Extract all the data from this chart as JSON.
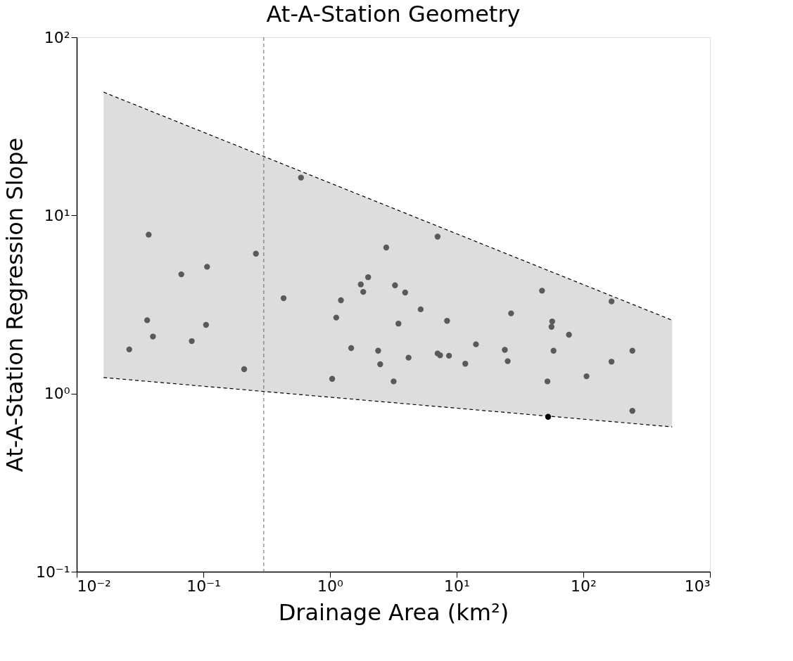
{
  "chart_data": {
    "type": "scatter",
    "title": "At-A-Station Geometry",
    "xlabel": "Drainage Area (km²)",
    "ylabel": "At-A-Station Regression Slope",
    "log": "xy",
    "grid": false,
    "marker": "circle",
    "xlim": [
      0.01,
      1000
    ],
    "ylim": [
      0.1,
      100
    ],
    "xticks": [
      {
        "value": 0.01,
        "label": "10⁻²"
      },
      {
        "value": 0.1,
        "label": "10⁻¹"
      },
      {
        "value": 1,
        "label": "10⁰"
      },
      {
        "value": 10,
        "label": "10¹"
      },
      {
        "value": 100,
        "label": "10²"
      },
      {
        "value": 1000,
        "label": "10³"
      }
    ],
    "yticks": [
      {
        "value": 0.1,
        "label": "10⁻¹"
      },
      {
        "value": 1,
        "label": "10⁰"
      },
      {
        "value": 10,
        "label": "10¹"
      },
      {
        "value": 100,
        "label": "10²"
      }
    ],
    "ref_lines": [
      {
        "axis": "x",
        "value": 0.3,
        "color": "#666666",
        "line_style": "dashed"
      }
    ],
    "series": [
      {
        "type": "line",
        "color": "#000000",
        "marker": "none",
        "line_style": "dashed",
        "x": [
          0.0163,
          503
        ],
        "values": [
          49.2,
          2.58
        ],
        "lower": [
          1.23,
          0.65
        ],
        "upper": [
          49.2,
          2.58
        ]
      },
      {
        "type": "line",
        "color": "#000000",
        "marker": "none",
        "line_style": "dashed",
        "x": [
          0.0163,
          503
        ],
        "values": [
          1.23,
          0.65
        ]
      },
      {
        "color": "#5a5a5a",
        "x": [
          0.026,
          0.037,
          0.036,
          0.04,
          0.067,
          0.081,
          0.107,
          0.105,
          0.21,
          0.26,
          0.43,
          0.59,
          1.04,
          1.12,
          1.22,
          1.47,
          1.75,
          1.83,
          2.0,
          2.4,
          2.49,
          2.78,
          3.18,
          3.26,
          3.47,
          3.92,
          4.17,
          5.2,
          7.07,
          7.07,
          7.4,
          8.4,
          8.7,
          11.7,
          14.2,
          24.0,
          25.3,
          26.9,
          47.2,
          52.1,
          56.8,
          56.1,
          58.2,
          77,
          106,
          167,
          167,
          244,
          244
        ],
        "values": [
          1.77,
          7.8,
          2.58,
          2.09,
          4.67,
          1.97,
          5.15,
          2.43,
          1.37,
          6.1,
          3.43,
          16.3,
          1.21,
          2.67,
          3.34,
          1.8,
          4.1,
          3.72,
          4.5,
          1.74,
          1.46,
          6.6,
          1.17,
          4.05,
          2.47,
          3.69,
          1.59,
          2.97,
          7.6,
          1.68,
          1.64,
          2.56,
          1.63,
          1.47,
          1.89,
          1.76,
          1.52,
          2.82,
          3.78,
          1.17,
          2.54,
          2.37,
          1.74,
          2.14,
          1.25,
          3.29,
          1.51,
          1.74,
          0.8
        ]
      },
      {
        "color": "#000000",
        "x": [
          52.7
        ],
        "values": [
          0.74
        ]
      }
    ]
  }
}
